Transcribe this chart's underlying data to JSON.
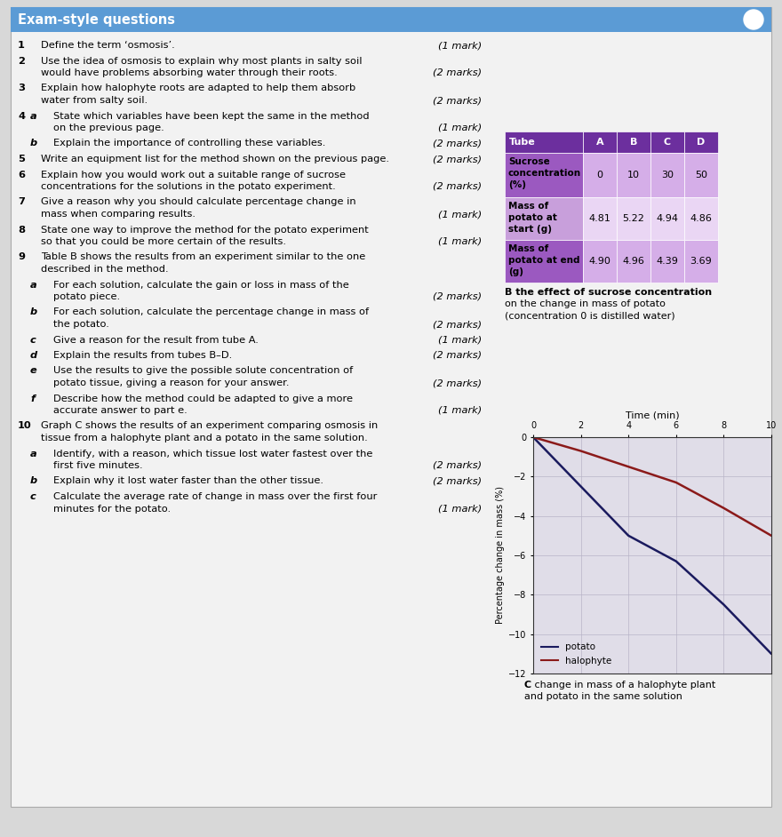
{
  "title": "Exam-style questions",
  "title_bg": "#5b9bd5",
  "title_color": "white",
  "bg_color": "#d8d8d8",
  "content_bg": "#f2f2f2",
  "questions": [
    {
      "num": "1",
      "sub_letter": "",
      "text": "Define the term ‘osmosis’.",
      "marks": "(1 mark)",
      "indent": 1,
      "bold_num": true
    },
    {
      "num": "2",
      "sub_letter": "",
      "text": "Use the idea of osmosis to explain why most plants in salty soil\nwould have problems absorbing water through their roots.",
      "marks": "(2 marks)",
      "indent": 1,
      "bold_num": true
    },
    {
      "num": "3",
      "sub_letter": "",
      "text": "Explain how halophyte roots are adapted to help them absorb\nwater from salty soil.",
      "marks": "(2 marks)",
      "indent": 1,
      "bold_num": true
    },
    {
      "num": "4",
      "sub_letter": "a",
      "text": "State which variables have been kept the same in the method\non the previous page.",
      "marks": "(1 mark)",
      "indent": 2,
      "bold_num": true
    },
    {
      "num": "",
      "sub_letter": "b",
      "text": "Explain the importance of controlling these variables.",
      "marks": "(2 marks)",
      "indent": 2,
      "bold_num": false
    },
    {
      "num": "5",
      "sub_letter": "",
      "text": "Write an equipment list for the method shown on the previous page.",
      "marks": "(2 marks)",
      "indent": 1,
      "bold_num": true
    },
    {
      "num": "6",
      "sub_letter": "",
      "text": "Explain how you would work out a suitable range of sucrose\nconcentrations for the solutions in the potato experiment.",
      "marks": "(2 marks)",
      "indent": 1,
      "bold_num": true
    },
    {
      "num": "7",
      "sub_letter": "",
      "text": "Give a reason why you should calculate percentage change in\nmass when comparing results.",
      "marks": "(1 mark)",
      "indent": 1,
      "bold_num": true
    },
    {
      "num": "8",
      "sub_letter": "",
      "text": "State one way to improve the method for the potato experiment\nso that you could be more certain of the results.",
      "marks": "(1 mark)",
      "indent": 1,
      "bold_num": true
    },
    {
      "num": "9",
      "sub_letter": "",
      "text": "Table B shows the results from an experiment similar to the one\ndescribed in the method.",
      "marks": "",
      "indent": 1,
      "bold_num": true
    },
    {
      "num": "",
      "sub_letter": "a",
      "text": "For each solution, calculate the gain or loss in mass of the\npotato piece.",
      "marks": "(2 marks)",
      "indent": 2,
      "bold_num": false
    },
    {
      "num": "",
      "sub_letter": "b",
      "text": "For each solution, calculate the percentage change in mass of\nthe potato.",
      "marks": "(2 marks)",
      "indent": 2,
      "bold_num": false
    },
    {
      "num": "",
      "sub_letter": "c",
      "text": "Give a reason for the result from tube A.",
      "marks": "(1 mark)",
      "indent": 2,
      "bold_num": false
    },
    {
      "num": "",
      "sub_letter": "d",
      "text": "Explain the results from tubes B–D.",
      "marks": "(2 marks)",
      "indent": 2,
      "bold_num": false
    },
    {
      "num": "",
      "sub_letter": "e",
      "text": "Use the results to give the possible solute concentration of\npotato tissue, giving a reason for your answer.",
      "marks": "(2 marks)",
      "indent": 2,
      "bold_num": false
    },
    {
      "num": "",
      "sub_letter": "f",
      "text": "Describe how the method could be adapted to give a more\naccurate answer to part e.",
      "marks": "(1 mark)",
      "indent": 2,
      "bold_num": false
    },
    {
      "num": "10",
      "sub_letter": "",
      "text": "Graph C shows the results of an experiment comparing osmosis in\ntissue from a halophyte plant and a potato in the same solution.",
      "marks": "",
      "indent": 1,
      "bold_num": true
    },
    {
      "num": "",
      "sub_letter": "a",
      "text": "Identify, with a reason, which tissue lost water fastest over the\nfirst five minutes.",
      "marks": "(2 marks)",
      "indent": 2,
      "bold_num": false
    },
    {
      "num": "",
      "sub_letter": "b",
      "text": "Explain why it lost water faster than the other tissue.",
      "marks": "(2 marks)",
      "indent": 2,
      "bold_num": false
    },
    {
      "num": "",
      "sub_letter": "c",
      "text": "Calculate the average rate of change in mass over the first four\nminutes for the potato.",
      "marks": "(1 mark)",
      "indent": 2,
      "bold_num": false
    }
  ],
  "table_header_bg": "#6c2f9e",
  "table_header_color": "white",
  "table_label_bg": "#9b59b6",
  "table_data_bg": "#dbb8e8",
  "table_cols": [
    "Tube",
    "A",
    "B",
    "C",
    "D"
  ],
  "table_rows": [
    [
      "Sucrose\nconcentration\n(%)",
      "0",
      "10",
      "30",
      "50"
    ],
    [
      "Mass of\npotato at\nstart (g)",
      "4.81",
      "5.22",
      "4.94",
      "4.86"
    ],
    [
      "Mass of\npotato at end\n(g)",
      "4.90",
      "4.96",
      "4.39",
      "3.69"
    ]
  ],
  "table_caption_bold": "B the effect of sucrose concentration",
  "table_caption_normal": "on the change in mass of potato\n(concentration 0 is distilled water)",
  "graph_potato_x": [
    0,
    2,
    4,
    6,
    8,
    10
  ],
  "graph_potato_y": [
    0,
    -2.5,
    -5.0,
    -6.3,
    -8.5,
    -11.0
  ],
  "graph_halophyte_x": [
    0,
    2,
    4,
    6,
    8,
    10
  ],
  "graph_halophyte_y": [
    0,
    -0.7,
    -1.5,
    -2.3,
    -3.6,
    -5.0
  ],
  "graph_xlabel": "Time (min)",
  "graph_ylabel": "Percentage change in mass (%)",
  "graph_caption_bold": "C",
  "graph_caption_normal": " change in mass of a halophyte plant\nand potato in the same solution",
  "graph_xlim": [
    0,
    10
  ],
  "graph_ylim": [
    -12,
    0
  ],
  "graph_yticks": [
    0,
    -2,
    -4,
    -6,
    -8,
    -10,
    -12
  ],
  "graph_xticks": [
    0,
    2,
    4,
    6,
    8,
    10
  ],
  "potato_color": "#1a1a5e",
  "halophyte_color": "#8b1a1a"
}
